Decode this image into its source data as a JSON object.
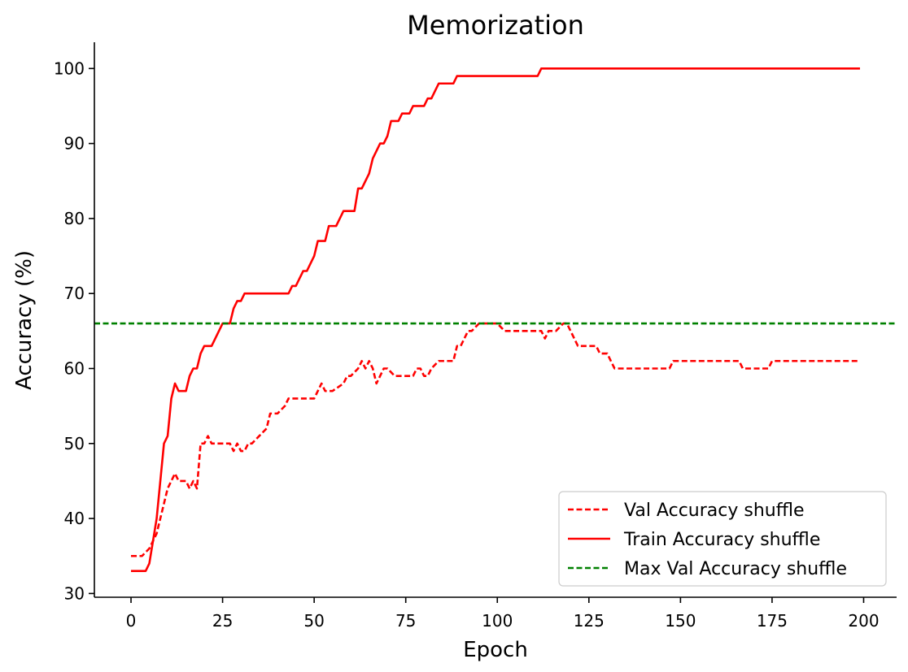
{
  "chart_data": {
    "type": "line",
    "title": "Memorization",
    "xlabel": "Epoch",
    "ylabel": "Accuracy (%)",
    "xlim": [
      -10,
      209
    ],
    "ylim": [
      29.5,
      103.5
    ],
    "xticks": [
      0,
      25,
      50,
      75,
      100,
      125,
      150,
      175,
      200
    ],
    "yticks": [
      30,
      40,
      50,
      60,
      70,
      80,
      90,
      100
    ],
    "legend_position": "lower-right",
    "grid": false,
    "series": [
      {
        "name": "Val Accuracy shuffle",
        "color": "#ff0000",
        "style": "dashed",
        "x": [
          0,
          3,
          5,
          6,
          7,
          8,
          9,
          10,
          11,
          12,
          13,
          14,
          15,
          16,
          17,
          18,
          19,
          20,
          21,
          22,
          25,
          27,
          28,
          29,
          30,
          31,
          32,
          33,
          35,
          37,
          38,
          39,
          40,
          42,
          43,
          45,
          50,
          51,
          52,
          53,
          54,
          55,
          58,
          59,
          60,
          62,
          63,
          64,
          65,
          66,
          67,
          68,
          69,
          70,
          72,
          73,
          75,
          77,
          78,
          79,
          80,
          81,
          82,
          84,
          85,
          88,
          89,
          90,
          92,
          93,
          95,
          98,
          100,
          102,
          103,
          110,
          112,
          113,
          114,
          116,
          118,
          119,
          120,
          122,
          125,
          127,
          128,
          130,
          131,
          132,
          140,
          147,
          148,
          150,
          166,
          167,
          174,
          175,
          199
        ],
        "values": [
          35,
          35,
          36,
          37,
          38,
          40,
          42,
          44,
          45,
          46,
          45,
          45,
          45,
          44,
          45,
          44,
          50,
          50,
          51,
          50,
          50,
          50,
          49,
          50,
          49,
          49,
          50,
          50,
          51,
          52,
          54,
          54,
          54,
          55,
          56,
          56,
          56,
          57,
          58,
          57,
          57,
          57,
          58,
          59,
          59,
          60,
          61,
          60,
          61,
          60,
          58,
          59,
          60,
          60,
          59,
          59,
          59,
          59,
          60,
          60,
          59,
          59,
          60,
          61,
          61,
          61,
          63,
          63,
          65,
          65,
          66,
          66,
          66,
          65,
          65,
          65,
          65,
          64,
          65,
          65,
          66,
          66,
          65,
          63,
          63,
          63,
          62,
          62,
          61,
          60,
          60,
          60,
          61,
          61,
          61,
          60,
          60,
          61,
          61
        ]
      },
      {
        "name": "Train Accuracy shuffle",
        "color": "#ff0000",
        "style": "solid",
        "x": [
          0,
          4,
          5,
          6,
          7,
          8,
          9,
          10,
          11,
          12,
          13,
          14,
          15,
          16,
          17,
          18,
          19,
          20,
          21,
          22,
          23,
          24,
          25,
          26,
          27,
          28,
          29,
          30,
          31,
          32,
          34,
          36,
          38,
          40,
          42,
          43,
          44,
          45,
          46,
          47,
          48,
          49,
          50,
          51,
          52,
          53,
          54,
          55,
          56,
          57,
          58,
          59,
          60,
          61,
          62,
          63,
          64,
          65,
          66,
          67,
          68,
          69,
          70,
          71,
          72,
          73,
          74,
          75,
          76,
          77,
          78,
          79,
          80,
          81,
          82,
          83,
          84,
          85,
          86,
          87,
          88,
          89,
          90,
          95,
          100,
          105,
          110,
          111,
          112,
          115,
          120,
          150,
          199
        ],
        "values": [
          33,
          33,
          34,
          37,
          40,
          45,
          50,
          51,
          56,
          58,
          57,
          57,
          57,
          59,
          60,
          60,
          62,
          63,
          63,
          63,
          64,
          65,
          66,
          66,
          66,
          68,
          69,
          69,
          70,
          70,
          70,
          70,
          70,
          70,
          70,
          70,
          71,
          71,
          72,
          73,
          73,
          74,
          75,
          77,
          77,
          77,
          79,
          79,
          79,
          80,
          81,
          81,
          81,
          81,
          84,
          84,
          85,
          86,
          88,
          89,
          90,
          90,
          91,
          93,
          93,
          93,
          94,
          94,
          94,
          95,
          95,
          95,
          95,
          96,
          96,
          97,
          98,
          98,
          98,
          98,
          98,
          99,
          99,
          99,
          99,
          99,
          99,
          99,
          100,
          100,
          100,
          100,
          100
        ]
      },
      {
        "name": "Max Val Accuracy shuffle",
        "color": "#008000",
        "style": "dashed",
        "x": [
          -10,
          209
        ],
        "values": [
          66,
          66
        ]
      }
    ]
  }
}
